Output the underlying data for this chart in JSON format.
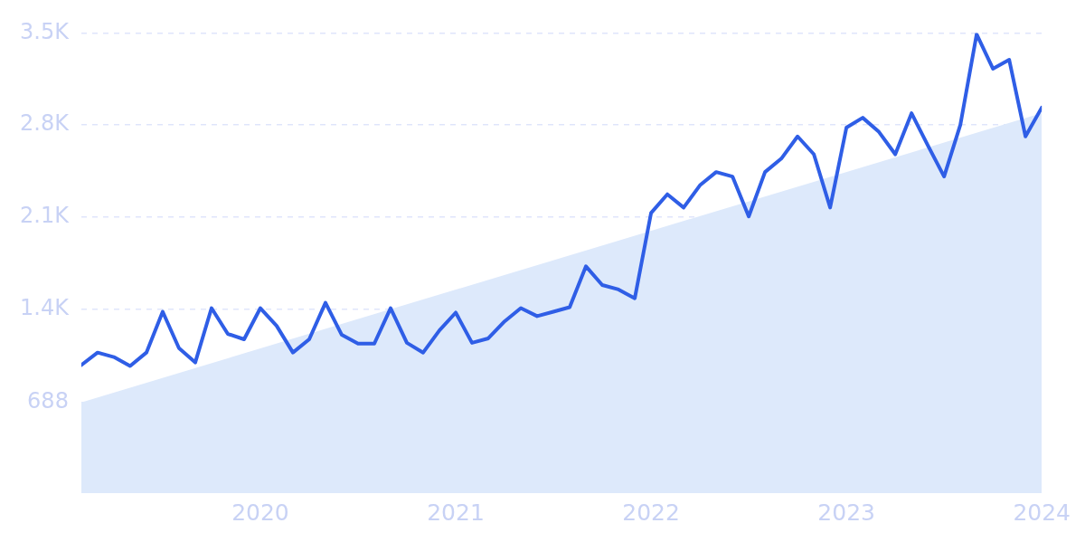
{
  "chart_data": {
    "type": "line",
    "x": [
      "2019-02",
      "2019-03",
      "2019-04",
      "2019-05",
      "2019-06",
      "2019-07",
      "2019-08",
      "2019-09",
      "2019-10",
      "2019-11",
      "2019-12",
      "2020-01",
      "2020-02",
      "2020-03",
      "2020-04",
      "2020-05",
      "2020-06",
      "2020-07",
      "2020-08",
      "2020-09",
      "2020-10",
      "2020-11",
      "2020-12",
      "2021-01",
      "2021-02",
      "2021-03",
      "2021-04",
      "2021-05",
      "2021-06",
      "2021-07",
      "2021-08",
      "2021-09",
      "2021-10",
      "2021-11",
      "2021-12",
      "2022-01",
      "2022-02",
      "2022-03",
      "2022-04",
      "2022-05",
      "2022-06",
      "2022-07",
      "2022-08",
      "2022-09",
      "2022-10",
      "2022-11",
      "2022-12",
      "2023-01",
      "2023-02",
      "2023-03",
      "2023-04",
      "2023-05",
      "2023-06",
      "2023-07",
      "2023-08",
      "2023-09",
      "2023-10",
      "2023-11",
      "2023-12",
      "2024-01"
    ],
    "series": [
      {
        "type": "area",
        "color": "#dde9fb",
        "x": [
          "2019-02",
          "2024-01"
        ],
        "values": [
          690,
          2890
        ]
      },
      {
        "type": "line",
        "color": "#2f5ee6",
        "values": [
          974,
          1069,
          1035,
          967,
          1069,
          1380,
          1103,
          994,
          1407,
          1211,
          1170,
          1407,
          1272,
          1069,
          1170,
          1448,
          1204,
          1137,
          1137,
          1407,
          1143,
          1069,
          1238,
          1373,
          1143,
          1177,
          1306,
          1407,
          1346,
          1380,
          1414,
          1725,
          1583,
          1549,
          1482,
          2131,
          2273,
          2172,
          2341,
          2442,
          2408,
          2104,
          2442,
          2544,
          2713,
          2577,
          2172,
          2780,
          2855,
          2747,
          2577,
          2889,
          2645,
          2408,
          2801,
          3490,
          3228,
          3296,
          2713,
          2932
        ]
      }
    ],
    "xlim": [
      "2019-02",
      "2024-01"
    ],
    "xticks": [
      "2020",
      "2021",
      "2022",
      "2023",
      "2024"
    ],
    "ylim": [
      0,
      3500
    ],
    "yticks": [
      688,
      {
        "value": 1400,
        "label": "1.4K"
      },
      {
        "value": 2100,
        "label": "2.1K"
      },
      {
        "value": 2800,
        "label": "2.8K"
      },
      {
        "value": 3500,
        "label": "3.5K"
      }
    ],
    "grid": "y",
    "legend": false,
    "marker": "none",
    "line_style": "solid"
  }
}
